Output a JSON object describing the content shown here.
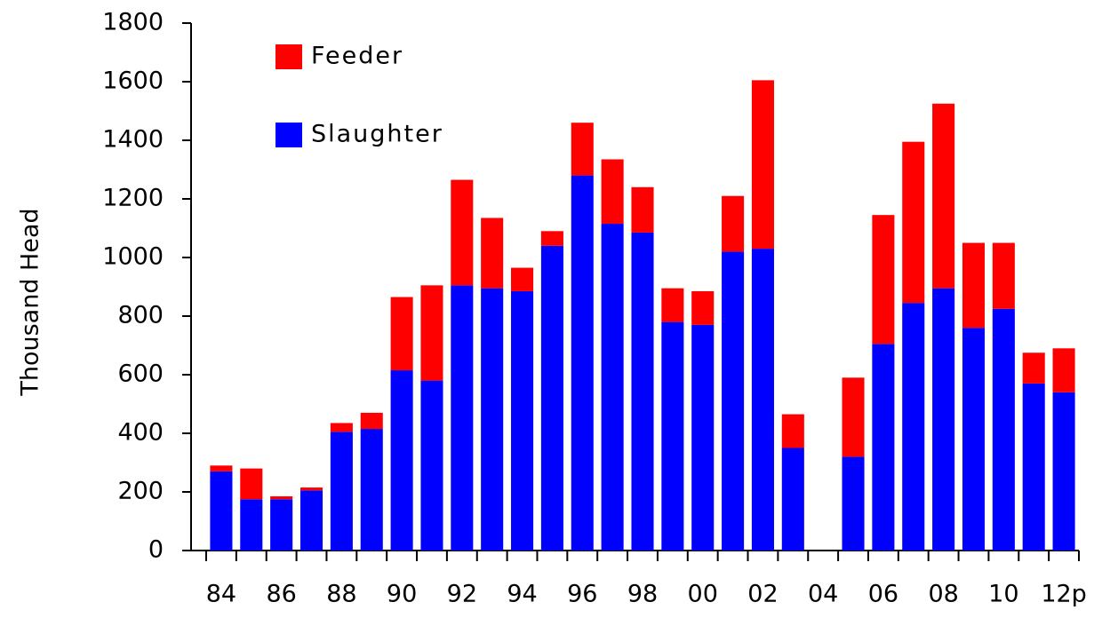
{
  "chart_data": {
    "type": "stacked_bar",
    "y_label": "Thousand Head",
    "categories": [
      "84",
      null,
      "86",
      null,
      "88",
      null,
      "90",
      null,
      "92",
      null,
      "94",
      null,
      "96",
      null,
      "98",
      null,
      "00",
      null,
      "02",
      null,
      "04",
      null,
      "06",
      null,
      "08",
      null,
      "10",
      null,
      "12p"
    ],
    "series": [
      {
        "name": "Slaughter",
        "color": "#0000ff",
        "values": [
          270,
          175,
          175,
          205,
          405,
          415,
          615,
          580,
          905,
          895,
          885,
          1040,
          1280,
          1115,
          1085,
          780,
          770,
          1020,
          1030,
          350,
          0,
          320,
          705,
          845,
          895,
          760,
          825,
          570,
          540
        ]
      },
      {
        "name": "Feeder",
        "color": "#ff0000",
        "values": [
          20,
          105,
          10,
          10,
          30,
          55,
          250,
          325,
          360,
          240,
          80,
          50,
          180,
          220,
          155,
          115,
          115,
          190,
          575,
          115,
          0,
          270,
          440,
          550,
          630,
          290,
          225,
          105,
          150
        ]
      }
    ],
    "ylim": [
      0,
      1800
    ],
    "yticks": [
      0,
      200,
      400,
      600,
      800,
      1000,
      1200,
      1400,
      1600,
      1800
    ],
    "legend": "upper left"
  }
}
